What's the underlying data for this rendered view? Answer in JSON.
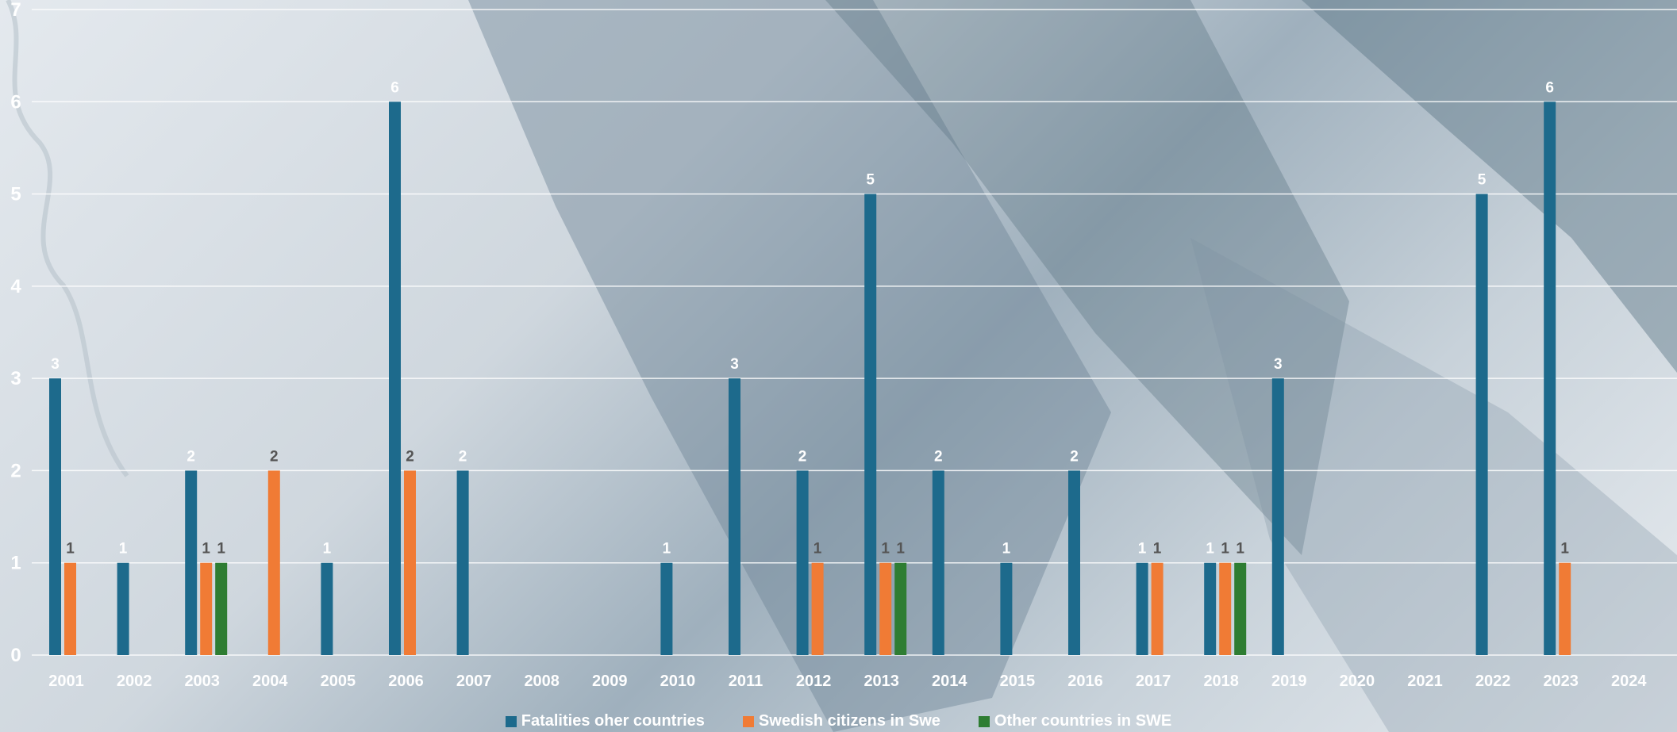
{
  "colors": {
    "fatalities_other": "#1d6a8c",
    "swedish_in_swe": "#f07b35",
    "other_in_swe": "#2e7d32"
  },
  "chart_data": {
    "type": "bar",
    "categories": [
      "2001",
      "2002",
      "2003",
      "2004",
      "2005",
      "2006",
      "2007",
      "2008",
      "2009",
      "2010",
      "2011",
      "2012",
      "2013",
      "2014",
      "2015",
      "2016",
      "2017",
      "2018",
      "2019",
      "2020",
      "2021",
      "2022",
      "2023",
      "2024"
    ],
    "series": [
      {
        "name": "Fatalities oher countries",
        "color": "#1d6a8c",
        "values": [
          3,
          1,
          2,
          null,
          1,
          6,
          2,
          null,
          null,
          1,
          3,
          2,
          5,
          2,
          1,
          2,
          1,
          1,
          3,
          null,
          null,
          5,
          6,
          null
        ]
      },
      {
        "name": "Swedish citizens in Swe",
        "color": "#f07b35",
        "values": [
          1,
          null,
          1,
          2,
          null,
          2,
          null,
          null,
          null,
          null,
          null,
          1,
          1,
          null,
          null,
          null,
          1,
          1,
          null,
          null,
          null,
          null,
          1,
          null
        ]
      },
      {
        "name": "Other countries in SWE",
        "color": "#2e7d32",
        "values": [
          null,
          null,
          1,
          null,
          null,
          null,
          null,
          null,
          null,
          null,
          null,
          null,
          1,
          null,
          null,
          null,
          null,
          1,
          null,
          null,
          null,
          null,
          null,
          null
        ]
      }
    ],
    "yticks": [
      "0",
      "1",
      "2",
      "3",
      "4",
      "5",
      "6",
      "7"
    ],
    "ylim": [
      0,
      7
    ],
    "grid": true,
    "legend": "bottom",
    "title": "",
    "xlabel": "",
    "ylabel": ""
  }
}
